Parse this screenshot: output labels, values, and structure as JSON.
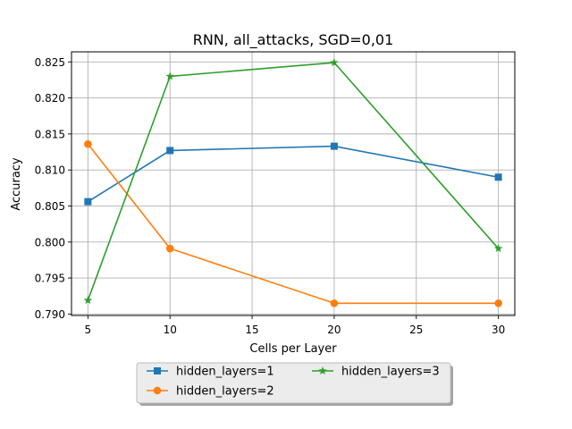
{
  "chart_data": {
    "type": "line",
    "title": "RNN, all_attacks, SGD=0,01",
    "xlabel": "Cells per Layer",
    "ylabel": "Accuracy",
    "xlim": [
      4,
      31
    ],
    "ylim": [
      0.7898,
      0.8264
    ],
    "xticks": [
      5,
      10,
      15,
      20,
      25,
      30
    ],
    "xtick_labels": [
      "5",
      "10",
      "15",
      "20",
      "25",
      "30"
    ],
    "yticks": [
      0.79,
      0.795,
      0.8,
      0.805,
      0.81,
      0.815,
      0.82,
      0.825
    ],
    "ytick_labels": [
      "0.790",
      "0.795",
      "0.800",
      "0.805",
      "0.810",
      "0.815",
      "0.820",
      "0.825"
    ],
    "grid": true,
    "legend_placement": "below-center",
    "series": [
      {
        "name": "hidden_layers=1",
        "color": "#1f77b4",
        "marker": "square",
        "x": [
          5,
          10,
          20,
          30
        ],
        "y": [
          0.8056,
          0.8127,
          0.8133,
          0.809
        ]
      },
      {
        "name": "hidden_layers=2",
        "color": "#ff7f0e",
        "marker": "circle",
        "x": [
          5,
          10,
          20,
          30
        ],
        "y": [
          0.8136,
          0.7991,
          0.7915,
          0.7915
        ]
      },
      {
        "name": "hidden_layers=3",
        "color": "#2ca02c",
        "marker": "star",
        "x": [
          5,
          10,
          20,
          30
        ],
        "y": [
          0.7919,
          0.823,
          0.8249,
          0.7991
        ]
      }
    ]
  }
}
